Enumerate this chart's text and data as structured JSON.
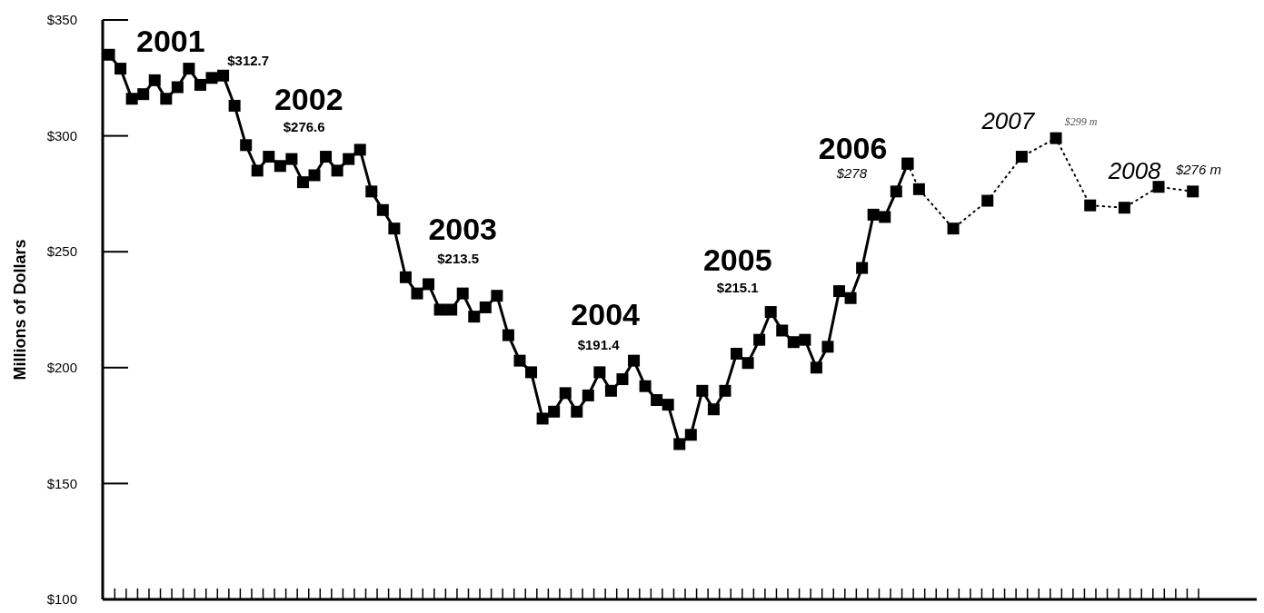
{
  "chart_data": {
    "type": "line",
    "ylabel": "Millions of Dollars",
    "marker": "square",
    "ylim": [
      100,
      350
    ],
    "yticks": [
      {
        "value": 100,
        "label": "$100"
      },
      {
        "value": 150,
        "label": "$150"
      },
      {
        "value": 200,
        "label": "$200"
      },
      {
        "value": 250,
        "label": "$250"
      },
      {
        "value": 300,
        "label": "$300"
      },
      {
        "value": 350,
        "label": "$350"
      }
    ],
    "categories": [
      null,
      null,
      null,
      null,
      null,
      null,
      null,
      null,
      null,
      null,
      null,
      null,
      null,
      null,
      null,
      null,
      null,
      null,
      null,
      null,
      null,
      null,
      null,
      null,
      null,
      null,
      null,
      null,
      null,
      null,
      null,
      null,
      null,
      null,
      null,
      null,
      null,
      null,
      null,
      null,
      null,
      null,
      null,
      null,
      null,
      null,
      null,
      null,
      null,
      null,
      null,
      null,
      null,
      null,
      null,
      null,
      null,
      null,
      null,
      null,
      null,
      null,
      null,
      null,
      null,
      null,
      null,
      null,
      null,
      null,
      null,
      null,
      null,
      null,
      null,
      null,
      null,
      null,
      null,
      null,
      null,
      null,
      null,
      null,
      null,
      null,
      null,
      null,
      null,
      null,
      null,
      null,
      null,
      null,
      null,
      null
    ],
    "series": [
      {
        "color": "#000000",
        "line_style": "solid",
        "values": [
          335,
          329,
          316,
          318,
          324,
          316,
          321,
          329,
          322,
          325,
          326,
          313,
          296,
          285,
          291,
          287,
          290,
          280,
          283,
          291,
          285,
          290,
          294,
          276,
          268,
          260,
          239,
          232,
          236,
          225,
          225,
          232,
          222,
          226,
          231,
          214,
          203,
          198,
          178,
          181,
          189,
          181,
          188,
          198,
          190,
          195,
          203,
          192,
          186,
          184,
          167,
          171,
          190,
          182,
          190,
          206,
          202,
          212,
          224,
          216,
          211,
          212,
          200,
          209,
          233,
          230,
          243,
          266,
          265,
          276,
          288,
          null,
          null,
          null,
          null,
          null,
          null,
          null,
          null,
          null,
          null,
          null,
          null,
          null,
          null,
          null,
          null,
          null,
          null,
          null,
          null,
          null,
          null,
          null,
          null,
          null
        ]
      },
      {
        "color": "#000000",
        "line_style": "dotted",
        "values": [
          null,
          null,
          null,
          null,
          null,
          null,
          null,
          null,
          null,
          null,
          null,
          null,
          null,
          null,
          null,
          null,
          null,
          null,
          null,
          null,
          null,
          null,
          null,
          null,
          null,
          null,
          null,
          null,
          null,
          null,
          null,
          null,
          null,
          null,
          null,
          null,
          null,
          null,
          null,
          null,
          null,
          null,
          null,
          null,
          null,
          null,
          null,
          null,
          null,
          null,
          null,
          null,
          null,
          null,
          null,
          null,
          null,
          null,
          null,
          null,
          null,
          null,
          null,
          null,
          null,
          null,
          null,
          null,
          null,
          null,
          288,
          277,
          null,
          null,
          260,
          null,
          null,
          272,
          null,
          null,
          291,
          null,
          null,
          299,
          null,
          null,
          270,
          null,
          null,
          269,
          null,
          null,
          278,
          null,
          null,
          276
        ]
      }
    ],
    "annotations": [
      "2001",
      "$312.7",
      "2002",
      "$276.6",
      "2003",
      "$213.5",
      "2004",
      "$191.4",
      "2005",
      "$215.1",
      "2006",
      "$278",
      "2007",
      "$299 m",
      "2008",
      "$276 m"
    ]
  }
}
